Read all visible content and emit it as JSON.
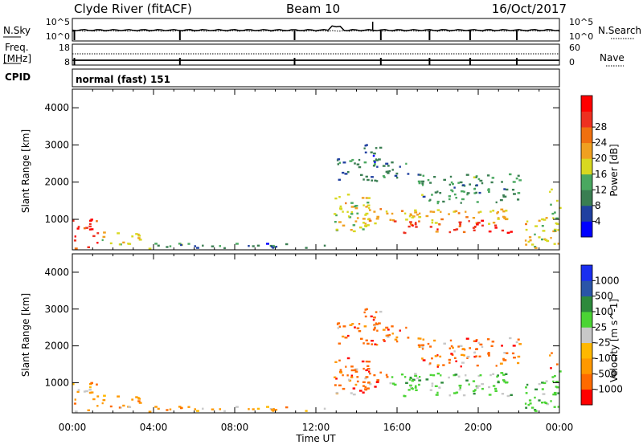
{
  "header": {
    "station": "Clyde River (fitACF)",
    "beam": "Beam 10",
    "date": "16/Oct/2017"
  },
  "noise_panel": {
    "left_label": "N.Sky",
    "right_label": "N.Search",
    "left_ticks": [
      "10^5",
      "10^0"
    ],
    "right_ticks": [
      "10^5",
      "10^0"
    ]
  },
  "freq_panel": {
    "left_label_1": "Freq.",
    "left_label_2": "[MHz]",
    "right_label": "Nave",
    "left_ticks": [
      "18",
      "8"
    ],
    "right_ticks": [
      "60",
      "0"
    ]
  },
  "cpid": {
    "label": "CPID",
    "program": "normal (fast) 151"
  },
  "colors": {
    "power_scale": [
      "#0000ff",
      "#2040a0",
      "#3a7e52",
      "#4aa860",
      "#d8d820",
      "#f0a020",
      "#f07010",
      "#ee3020",
      "#ff0000"
    ],
    "velocity_scale": [
      "#ff0000",
      "#ff6a00",
      "#ff9800",
      "#ffb800",
      "#c8c8c8",
      "#4bd434",
      "#2d8a3c",
      "#2a55a8",
      "#1a2ef0"
    ]
  },
  "chart_data": [
    {
      "type": "heatmap",
      "name": "power",
      "xlabel": "Time UT",
      "ylabel": "Slant Range [km]",
      "x_ticks": [
        "00:00",
        "04:00",
        "08:00",
        "12:00",
        "16:00",
        "20:00",
        "00:00"
      ],
      "x_range_hours": [
        0,
        24
      ],
      "ylim": [
        180,
        4500
      ],
      "y_ticks": [
        1000,
        2000,
        3000,
        4000
      ],
      "colorbar_label": "Power [dB]",
      "colorbar_ticks": [
        4,
        8,
        12,
        16,
        20,
        24,
        28
      ],
      "colorbar_range": [
        0,
        32
      ]
    },
    {
      "type": "heatmap",
      "name": "velocity",
      "xlabel": "Time UT",
      "ylabel": "Slant Range [km]",
      "x_ticks": [
        "00:00",
        "04:00",
        "08:00",
        "12:00",
        "16:00",
        "20:00",
        "00:00"
      ],
      "x_range_hours": [
        0,
        24
      ],
      "ylim": [
        180,
        4500
      ],
      "y_ticks": [
        1000,
        2000,
        3000,
        4000
      ],
      "colorbar_label": "Velocity [m s^-1]",
      "colorbar_ticks": [
        "1000",
        "500",
        "100",
        "25",
        "-25",
        "-100",
        "-500",
        "-1000"
      ]
    }
  ]
}
